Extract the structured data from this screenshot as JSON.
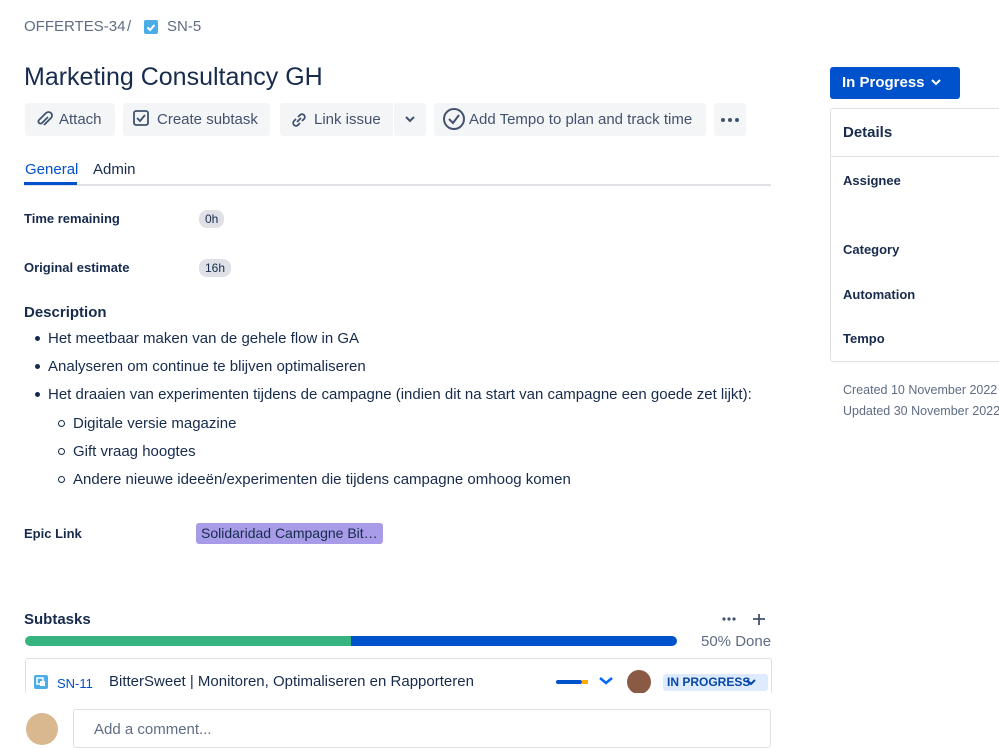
{
  "breadcrumb": {
    "parent": "OFFERTES-34",
    "separator": "/",
    "issue": "SN-5"
  },
  "title": "Marketing Consultancy GH",
  "actions": [
    "Attach",
    "Create subtask",
    "Link issue",
    "Add Tempo to plan and track time"
  ],
  "tabs": [
    "General",
    "Admin"
  ],
  "fields": [
    {
      "label": "Time remaining",
      "value": "0h"
    },
    {
      "label": "Original estimate",
      "value": "16h"
    }
  ],
  "description": {
    "heading": "Description",
    "items": [
      "Het meetbaar maken van de gehele flow in GA",
      "Analyseren om continue te blijven optimaliseren",
      "Het draaien van experimenten tijdens de campagne (indien dit na start van campagne een goede zet lijkt):"
    ],
    "subitems": [
      "Digitale versie magazine",
      "Gift vraag hoogtes",
      "Andere nieuwe ideeën/experimenten die tijdens campagne omhoog komen"
    ]
  },
  "epic_link": {
    "label": "Epic Link",
    "value": "Solidaridad Campagne Bit…"
  },
  "subtasks": {
    "heading": "Subtasks",
    "progress": "50% Done",
    "items": [
      {
        "key": "SN-11",
        "summary": "BitterSweet | Monitoren, Optimaliseren en Rapporteren",
        "status": "IN PROGRESS"
      }
    ]
  },
  "comment": {
    "placeholder": "Add a comment..."
  },
  "sidebar": {
    "status": "In Progress",
    "heading": "Details",
    "labels": [
      "Assignee",
      "Category",
      "Automation",
      "Tempo"
    ],
    "created": "Created 10 November 2022",
    "updated": "Updated 30 November 2022"
  }
}
